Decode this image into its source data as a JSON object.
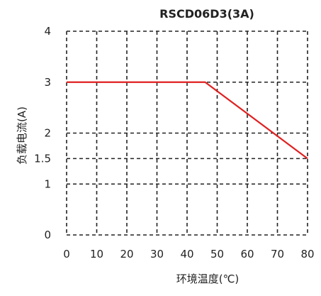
{
  "chart_data": {
    "type": "line",
    "title": "RSCD06D3(3A)",
    "xlabel": "环境温度(℃)",
    "ylabel": "负载电流(A)",
    "xlim": [
      0,
      80
    ],
    "ylim": [
      0,
      4
    ],
    "x_ticks": [
      0,
      10,
      20,
      30,
      40,
      50,
      60,
      70,
      80
    ],
    "x_tick_labels": [
      "0",
      "10",
      "20",
      "30",
      "40",
      "50",
      "60",
      "70",
      "80"
    ],
    "y_ticks": [
      0,
      1,
      1.5,
      2,
      3,
      4
    ],
    "y_tick_labels": [
      "0",
      "1",
      "1.5",
      "2",
      "3",
      "4"
    ],
    "grid": true,
    "grid_style": "dashed",
    "series": [
      {
        "color": "#e02020",
        "x": [
          0,
          46,
          80
        ],
        "y": [
          3,
          3,
          1.5
        ]
      }
    ]
  }
}
